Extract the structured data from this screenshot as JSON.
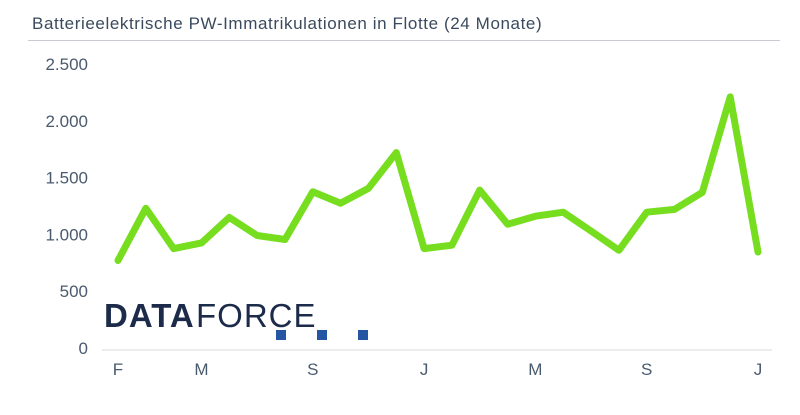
{
  "title": "Batterieelektrische PW-Immatrikulationen in Flotte (24 Monate)",
  "logo": {
    "part1": "DATA",
    "part2": "FORCE",
    "color_dark": "#1c2b4a",
    "color_accent": "#2456a4"
  },
  "colors": {
    "line": "#77dd1f",
    "axis": "#4a5a6e"
  },
  "chart_data": {
    "type": "line",
    "title": "Batterieelektrische PW-Immatrikulationen in Flotte (24 Monate)",
    "xlabel": "",
    "ylabel": "",
    "ylim": [
      0,
      2500
    ],
    "y_ticks": [
      0,
      500,
      1000,
      1500,
      2000,
      2500
    ],
    "y_tick_labels": [
      "0",
      "500",
      "1.000",
      "1.500",
      "2.000",
      "2.500"
    ],
    "x_tick_labels": [
      {
        "index": 0,
        "label": "F"
      },
      {
        "index": 3,
        "label": "M"
      },
      {
        "index": 7,
        "label": "S"
      },
      {
        "index": 11,
        "label": "J"
      },
      {
        "index": 15,
        "label": "M"
      },
      {
        "index": 19,
        "label": "S"
      },
      {
        "index": 23,
        "label": "J"
      }
    ],
    "grid": false,
    "legend": "none",
    "series": [
      {
        "values": [
          770,
          1230,
          875,
          925,
          1150,
          990,
          955,
          1375,
          1275,
          1405,
          1720,
          875,
          905,
          1390,
          1090,
          1160,
          1195,
          1030,
          860,
          1195,
          1220,
          1370,
          2210,
          845
        ]
      }
    ]
  }
}
